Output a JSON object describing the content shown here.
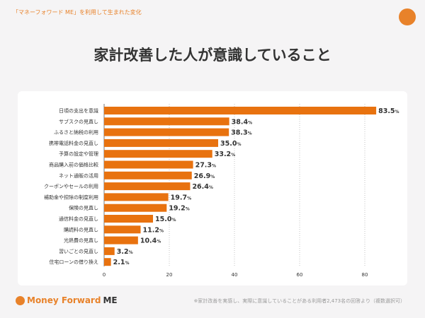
{
  "header": {
    "subtitle": "「マネーフォワード ME」を利用して生まれた変化",
    "title": "家計改善した人が意識していること"
  },
  "footer": {
    "brand": "Money Forward",
    "brand_suffix": "ME",
    "note": "※家計改善を実感し、実際に意識していることがある利用者2,473名の回答より（複数選択可）"
  },
  "chart_data": {
    "type": "bar",
    "orientation": "horizontal",
    "categories": [
      "日頃の支出を意識",
      "サブスクの見直し",
      "ふるさと納税の利用",
      "携帯電話料金の見直し",
      "予算の設定や管理",
      "商品購入前の価格比較",
      "ネット通販の活用",
      "クーポンやセールの利用",
      "補助金や控除の制度利用",
      "保険の見直し",
      "通信料金の見直し",
      "購読料の見直し",
      "光熱費の見直し",
      "習いごとの見直し",
      "住宅ローンの借り換え"
    ],
    "values": [
      83.5,
      38.4,
      38.3,
      35.0,
      33.2,
      27.3,
      26.9,
      26.4,
      19.7,
      19.2,
      15.0,
      11.2,
      10.4,
      3.2,
      2.1
    ],
    "unit": "%",
    "xlim": [
      0,
      80
    ],
    "xticks": [
      0,
      20,
      40,
      60,
      80
    ],
    "grid": true,
    "bar_color": "#e8720f"
  }
}
